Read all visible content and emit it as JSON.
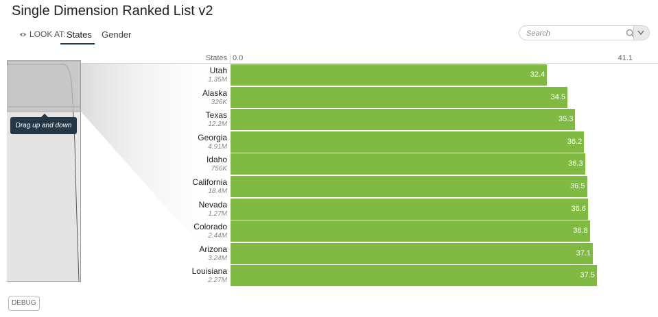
{
  "header": {
    "title": "Single Dimension Ranked List v2"
  },
  "look_at": {
    "label": "LOOK AT:",
    "tabs": [
      "States",
      "Gender"
    ],
    "active": "States"
  },
  "search": {
    "placeholder": "Search"
  },
  "overview": {
    "tooltip": "Drag up and down"
  },
  "chart_data": {
    "type": "bar",
    "orientation": "horizontal",
    "dimension_label": "States",
    "axis_min_label": "0.0",
    "axis_max_label": "41.1",
    "xlim": [
      0,
      41.1
    ],
    "categories": [
      "Utah",
      "Alaska",
      "Texas",
      "Georgia",
      "Idaho",
      "California",
      "Nevada",
      "Colorado",
      "Arizona",
      "Louisiana"
    ],
    "sublabels": [
      "1.35M",
      "326K",
      "12.2M",
      "4.91M",
      "756K",
      "18.4M",
      "1.27M",
      "2.44M",
      "3.24M",
      "2.27M"
    ],
    "values": [
      32.4,
      34.5,
      35.3,
      36.2,
      36.3,
      36.5,
      36.6,
      36.8,
      37.1,
      37.5
    ],
    "bar_color": "#80ba43"
  },
  "footer": {
    "debug_label": "DEBUG"
  }
}
